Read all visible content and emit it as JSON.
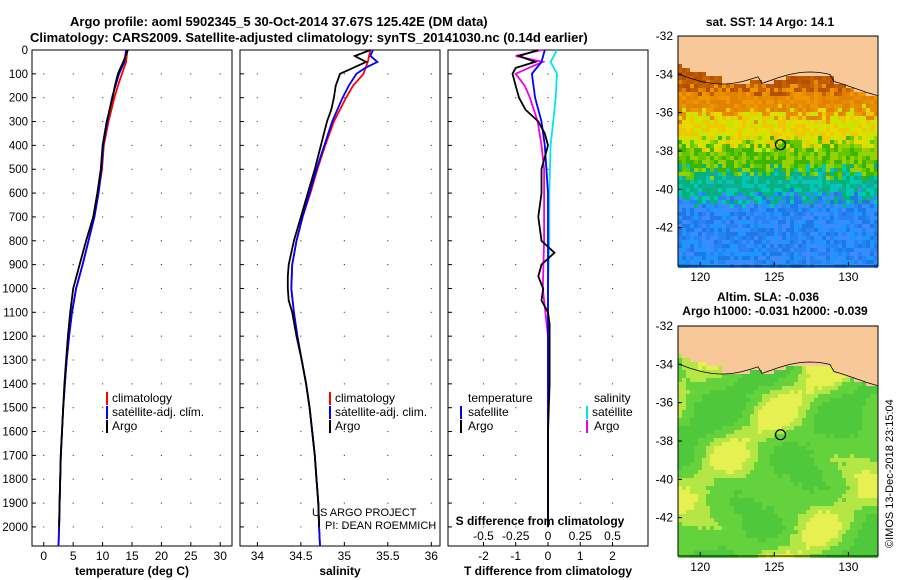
{
  "title": {
    "line1": "Argo profile: aoml 5902345_5 30-Oct-2014 37.67S 125.42E (DM data)",
    "line2": "Climatology: CARS2009. Satellite-adjusted climatology: synTS_20141030.nc (0.14d earlier)"
  },
  "colors": {
    "climatology": "#ff0000",
    "satellite": "#0000ff",
    "argo": "#000000",
    "sat_t_diff": "#0000ff",
    "sat_s_diff": "#00e5ee",
    "argo_s_diff": "#ee00ee",
    "land": "#f9c898"
  },
  "chart_data": [
    {
      "type": "line",
      "name": "temperature",
      "xlabel": "temperature (deg C)",
      "ylabel": "",
      "xlim": [
        -2,
        32
      ],
      "ylim": [
        2080,
        0
      ],
      "xticks": [
        "0",
        "5",
        "10",
        "15",
        "20",
        "25",
        "30"
      ],
      "xtick_values": [
        0,
        5,
        10,
        15,
        20,
        25,
        30
      ],
      "ytick_values": [
        0,
        100,
        200,
        300,
        400,
        500,
        600,
        700,
        800,
        900,
        1000,
        1100,
        1200,
        1300,
        1400,
        1500,
        1600,
        1700,
        1800,
        1900,
        2000
      ],
      "yticks": [
        "0",
        "100",
        "200",
        "300",
        "400",
        "500",
        "600",
        "700",
        "800",
        "900",
        "1000",
        "1100",
        "1200",
        "1300",
        "1400",
        "1500",
        "1600",
        "1700",
        "1800",
        "1900",
        "2000"
      ],
      "legend": [
        "climatology",
        "satellite-adj. clim.",
        "Argo"
      ],
      "series": [
        {
          "name": "climatology",
          "depth": [
            0,
            50,
            100,
            150,
            200,
            300,
            400,
            500,
            600,
            700,
            800,
            900,
            1000,
            1100,
            1200,
            1300,
            1400,
            1500,
            1600,
            1700,
            1800,
            1900,
            2000,
            2080
          ],
          "values": [
            14.2,
            14.0,
            13.3,
            12.6,
            12.0,
            11.0,
            10.2,
            9.9,
            9.3,
            8.6,
            7.6,
            6.6,
            5.5,
            4.8,
            4.3,
            3.9,
            3.6,
            3.3,
            3.1,
            2.9,
            2.8,
            2.7,
            2.6,
            2.5
          ]
        },
        {
          "name": "satellite-adj. clim.",
          "depth": [
            0,
            50,
            100,
            150,
            200,
            300,
            400,
            500,
            600,
            700,
            800,
            900,
            1000,
            1100,
            1200,
            1300,
            1400,
            1500,
            1600,
            1700,
            1800,
            1900,
            2000,
            2080
          ],
          "values": [
            14.0,
            13.7,
            12.8,
            12.2,
            11.6,
            10.8,
            10.1,
            9.8,
            9.3,
            8.6,
            7.6,
            6.6,
            5.5,
            4.8,
            4.3,
            3.9,
            3.6,
            3.3,
            3.1,
            2.9,
            2.8,
            2.7,
            2.6,
            2.5
          ]
        },
        {
          "name": "Argo",
          "depth": [
            0,
            50,
            100,
            150,
            200,
            250,
            300,
            400,
            500,
            600,
            700,
            800,
            900,
            1000,
            1100,
            1200,
            1300,
            1400,
            1500,
            1600,
            1700,
            1800,
            1900,
            2000
          ],
          "values": [
            14.3,
            13.5,
            12.6,
            12.1,
            11.7,
            11.2,
            10.7,
            10.0,
            9.7,
            9.1,
            8.4,
            7.2,
            6.1,
            5.0,
            4.5,
            4.1,
            3.8,
            3.5,
            3.3,
            3.1,
            2.9,
            2.8,
            2.7,
            2.6
          ]
        }
      ]
    },
    {
      "type": "line",
      "name": "salinity",
      "xlabel": "salinity",
      "xlim": [
        33.8,
        36.1
      ],
      "ylim": [
        2080,
        0
      ],
      "xticks": [
        "34",
        "34.5",
        "35",
        "35.5",
        "36"
      ],
      "xtick_values": [
        34,
        34.5,
        35,
        35.5,
        36
      ],
      "legend": [
        "climatology",
        "satellite-adj. clim.",
        "Argo"
      ],
      "annotation": [
        "US ARGO PROJECT",
        "PI: DEAN ROEMMICH"
      ],
      "series": [
        {
          "name": "climatology",
          "depth": [
            0,
            50,
            100,
            150,
            200,
            300,
            400,
            500,
            600,
            700,
            800,
            900,
            1000,
            1100,
            1200,
            1300,
            1400,
            1500,
            1600,
            1700,
            1800,
            1900,
            2000,
            2080
          ],
          "values": [
            35.3,
            35.27,
            35.22,
            35.1,
            35.02,
            34.88,
            34.78,
            34.69,
            34.61,
            34.52,
            34.45,
            34.4,
            34.39,
            34.42,
            34.46,
            34.51,
            34.56,
            34.6,
            34.63,
            34.66,
            34.68,
            34.7,
            34.71,
            34.72
          ]
        },
        {
          "name": "satellite-adj. clim.",
          "depth": [
            0,
            25,
            50,
            75,
            100,
            150,
            200,
            300,
            400,
            500,
            600,
            700,
            800,
            900,
            1000,
            1100,
            1200,
            1300,
            1400,
            1500,
            1600,
            1700,
            1800,
            1900,
            2000,
            2080
          ],
          "values": [
            35.33,
            35.3,
            35.38,
            35.24,
            35.14,
            35.05,
            34.98,
            34.86,
            34.77,
            34.68,
            34.6,
            34.52,
            34.45,
            34.4,
            34.39,
            34.42,
            34.46,
            34.51,
            34.56,
            34.6,
            34.63,
            34.66,
            34.68,
            34.7,
            34.71,
            34.72
          ]
        },
        {
          "name": "Argo",
          "depth": [
            0,
            25,
            50,
            75,
            100,
            150,
            200,
            250,
            300,
            400,
            500,
            600,
            700,
            800,
            900,
            950,
            1000,
            1050,
            1100,
            1200,
            1300,
            1400,
            1500,
            1600,
            1700,
            1800,
            1900,
            2000
          ],
          "values": [
            35.3,
            35.12,
            35.25,
            35.1,
            34.95,
            34.9,
            34.88,
            34.85,
            34.8,
            34.73,
            34.66,
            34.58,
            34.5,
            34.42,
            34.36,
            34.35,
            34.35,
            34.36,
            34.4,
            34.45,
            34.51,
            34.56,
            34.6,
            34.63,
            34.66,
            34.68,
            34.7,
            34.71
          ]
        }
      ]
    },
    {
      "type": "line",
      "name": "T and S difference from climatology",
      "xlabel": "T difference from climatology",
      "xlabel_top": "S difference from climatology",
      "xlim": [
        -3.1,
        3.1
      ],
      "ylim": [
        2080,
        0
      ],
      "xticks": [
        "-2",
        "-1",
        "0",
        "1",
        "2"
      ],
      "xtick_values": [
        -2,
        -1,
        0,
        1,
        2
      ],
      "sticks": [
        "-0.5",
        "-0.25",
        "0",
        "0.25",
        "0.5"
      ],
      "stick_values": [
        -0.5,
        -0.25,
        0,
        0.25,
        0.5
      ],
      "s_scale_per_t": 4,
      "legend_t_title": "temperature",
      "legend_s_title": "salinity",
      "legend_t": [
        "satellite",
        "Argo"
      ],
      "legend_s": [
        "satellite",
        "Argo"
      ],
      "series": [
        {
          "name": "T satellite",
          "depth": [
            0,
            50,
            100,
            200,
            300,
            400,
            600,
            800,
            1000,
            1200,
            2000
          ],
          "values": [
            -0.1,
            -0.2,
            -0.5,
            -0.4,
            -0.2,
            -0.1,
            0.0,
            0.0,
            0.0,
            0.0,
            0.0
          ]
        },
        {
          "name": "T Argo",
          "depth": [
            0,
            25,
            50,
            75,
            100,
            150,
            200,
            250,
            300,
            350,
            400,
            500,
            600,
            700,
            800,
            850,
            900,
            950,
            1000,
            1050,
            1100,
            1150,
            1200,
            1400,
            1600,
            2000
          ],
          "values": [
            -0.3,
            -0.9,
            -0.4,
            -1.0,
            -1.1,
            -1.0,
            -0.9,
            -0.7,
            -0.3,
            -0.1,
            0.0,
            -0.2,
            -0.2,
            -0.3,
            -0.2,
            0.2,
            -0.2,
            -0.3,
            -0.15,
            -0.2,
            0.0,
            0.05,
            0.05,
            0.05,
            0.0,
            0.0
          ]
        },
        {
          "name": "S satellite",
          "depth": [
            0,
            50,
            100,
            200,
            300,
            400,
            600,
            800,
            1000,
            1200,
            2000
          ],
          "values": [
            0.07,
            0.02,
            0.07,
            0.06,
            0.04,
            0.02,
            0.01,
            0.01,
            0.0,
            0.0,
            0.0
          ]
        },
        {
          "name": "S Argo",
          "depth": [
            0,
            25,
            50,
            75,
            100,
            150,
            200,
            300,
            400,
            500,
            600,
            800,
            1000,
            1200,
            1400,
            1600,
            2000
          ],
          "values": [
            -0.05,
            -0.25,
            -0.04,
            -0.15,
            -0.25,
            -0.18,
            -0.14,
            -0.08,
            -0.05,
            -0.03,
            -0.03,
            -0.03,
            -0.04,
            0.0,
            0.0,
            0.0,
            0.0
          ]
        }
      ]
    },
    {
      "type": "heatmap",
      "name": "SST map",
      "title": "sat. SST: 14 Argo: 14.1",
      "xticks": [
        "120",
        "125",
        "130"
      ],
      "xtick_values": [
        120,
        125,
        130
      ],
      "yticks": [
        "-32",
        "-34",
        "-36",
        "-38",
        "-40",
        "-42"
      ],
      "ytick_values": [
        -32,
        -34,
        -36,
        -38,
        -40,
        -42
      ],
      "xlim": [
        118.5,
        132
      ],
      "ylim": [
        -44,
        -32
      ],
      "profile_lon": 125.42,
      "profile_lat": -37.67
    },
    {
      "type": "heatmap",
      "name": "SLA map",
      "title_line1": "Altim. SLA: -0.036",
      "title_line2": "Argo h1000: -0.031 h2000: -0.039",
      "xticks": [
        "120",
        "125",
        "130"
      ],
      "xtick_values": [
        120,
        125,
        130
      ],
      "yticks": [
        "-32",
        "-34",
        "-36",
        "-38",
        "-40",
        "-42"
      ],
      "ytick_values": [
        -32,
        -34,
        -36,
        -38,
        -40,
        -42
      ],
      "xlim": [
        118.5,
        132
      ],
      "ylim": [
        -44,
        -32
      ],
      "profile_lon": 125.42,
      "profile_lat": -37.67
    }
  ],
  "stamp": "©IMOS 13-Dec-2018 23:15:04"
}
